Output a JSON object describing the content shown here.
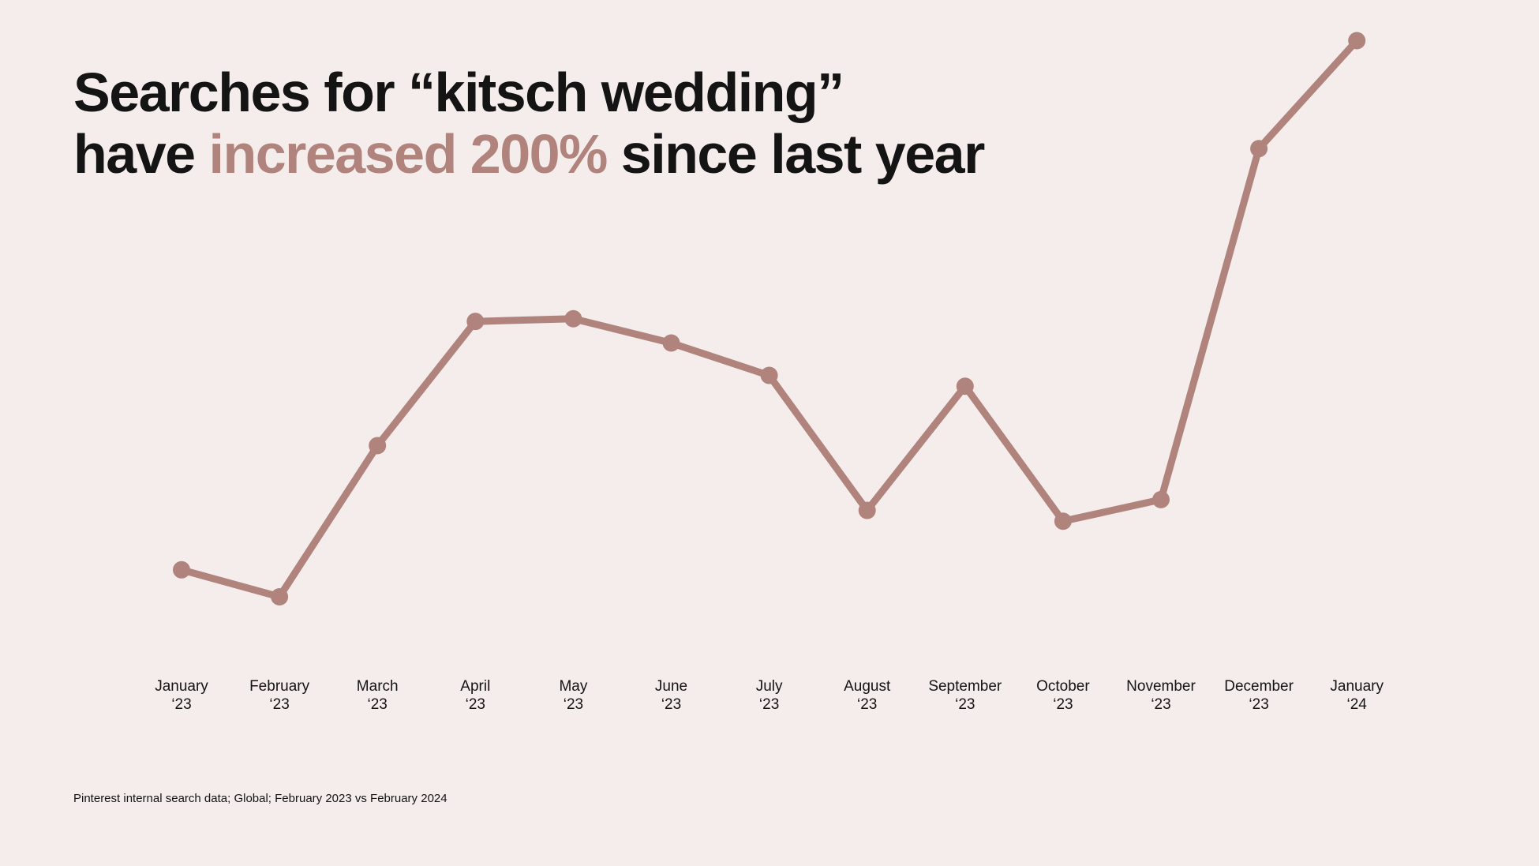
{
  "headline": {
    "line1": "Searches for “kitsch wedding”",
    "line2_prefix": "have ",
    "line2_highlight": "increased 200%",
    "line2_suffix": " since last year"
  },
  "footnote": "Pinterest internal search data; Global; February 2023 vs February 2024",
  "colors": {
    "background": "#f5edeb",
    "series": "#b0847c",
    "text": "#141414"
  },
  "chart_data": {
    "type": "line",
    "title": "Searches for “kitsch wedding” have increased 200% since last year",
    "xlabel": "",
    "ylabel": "",
    "grid": false,
    "legend": "none",
    "ylim": [
      0,
      100
    ],
    "categories": [
      [
        "January",
        "‘23"
      ],
      [
        "February",
        "‘23"
      ],
      [
        "March",
        "‘23"
      ],
      [
        "April",
        "‘23"
      ],
      [
        "May",
        "‘23"
      ],
      [
        "June",
        "‘23"
      ],
      [
        "July",
        "‘23"
      ],
      [
        "August",
        "‘23"
      ],
      [
        "September",
        "‘23"
      ],
      [
        "October",
        "‘23"
      ],
      [
        "November",
        "‘23"
      ],
      [
        "December",
        "‘23"
      ],
      [
        "January",
        "‘24"
      ]
    ],
    "series": [
      {
        "values": [
          5,
          0,
          28,
          51,
          51.5,
          47,
          41,
          16,
          39,
          14,
          18,
          83,
          103
        ]
      }
    ]
  }
}
